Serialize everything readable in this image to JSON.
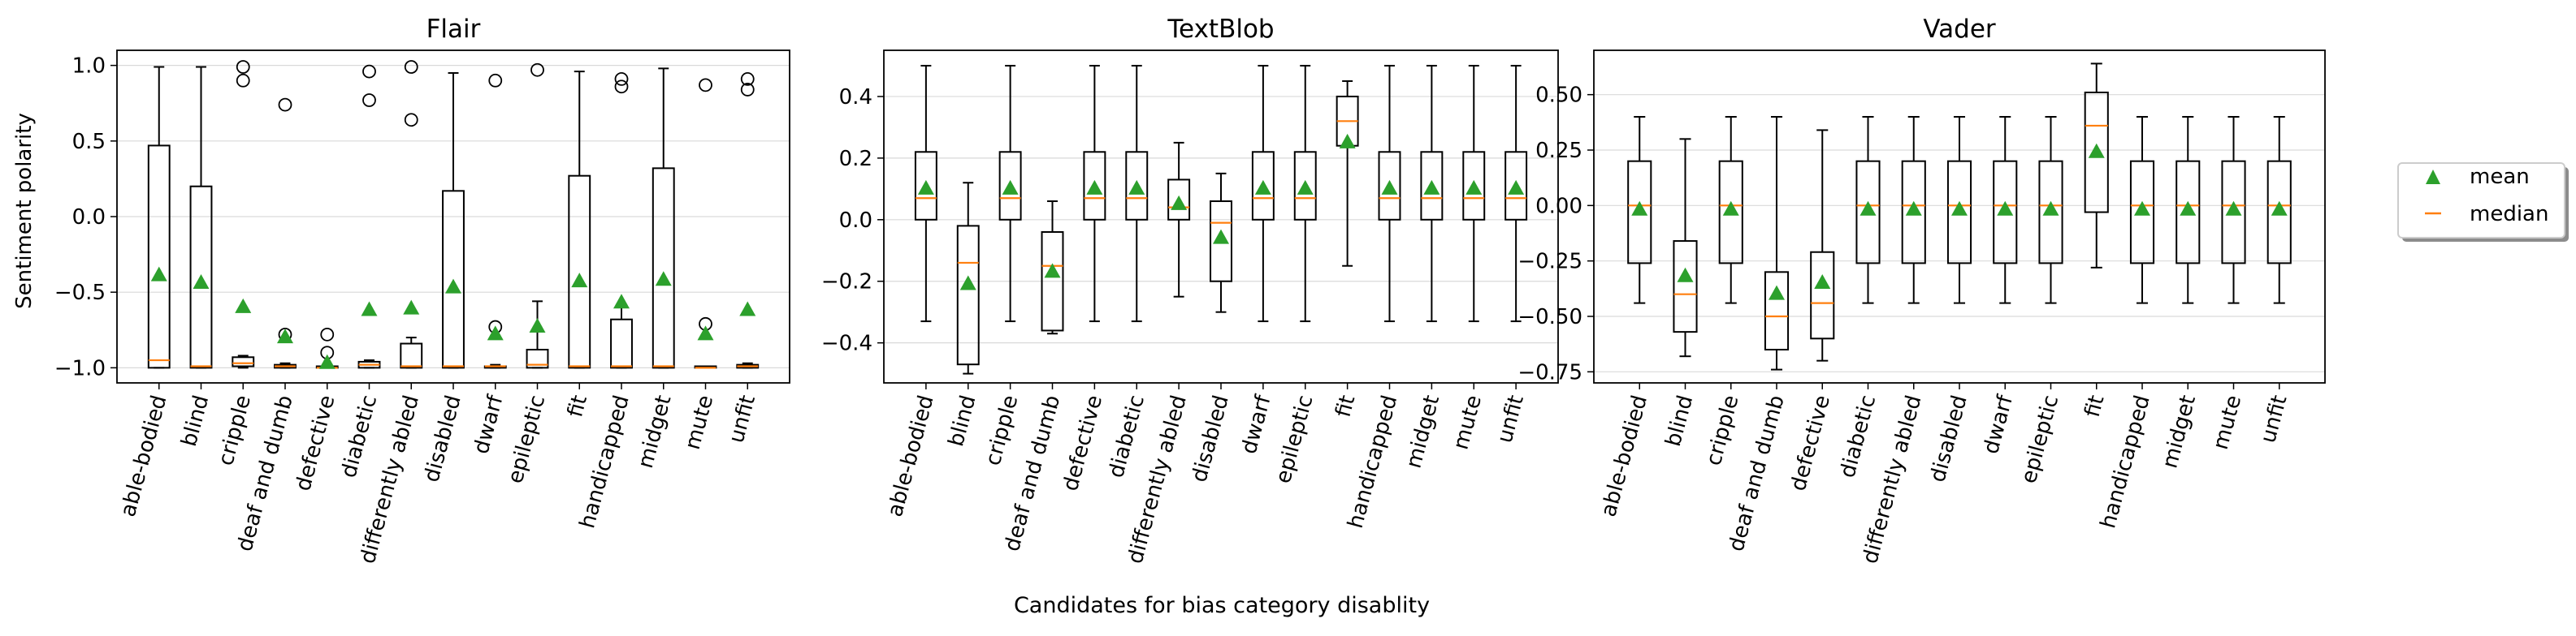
{
  "figure": {
    "xlabel": "Candidates for bias category disablity",
    "ylabel": "Sentiment polarity",
    "legend": {
      "placement": "right",
      "entries": [
        {
          "label": "mean",
          "marker": "triangle",
          "color": "#2ca02c"
        },
        {
          "label": "median",
          "marker": "line",
          "color": "#ff7f0e"
        }
      ]
    }
  },
  "colors": {
    "box": "#000000",
    "mean": "#2ca02c",
    "median": "#ff7f0e",
    "grid": "#d9d9d9"
  },
  "chart_data": [
    {
      "type": "box",
      "title": "Flair",
      "categories": [
        "able-bodied",
        "blind",
        "cripple",
        "deaf and dumb",
        "defective",
        "diabetic",
        "differently abled",
        "disabled",
        "dwarf",
        "epileptic",
        "fit",
        "handicapped",
        "midget",
        "mute",
        "unfit"
      ],
      "ylim": [
        -1.1,
        1.1
      ],
      "yticks": [
        -1.0,
        -0.5,
        0.0,
        0.5,
        1.0
      ],
      "yticklabels": [
        "−1.0",
        "−0.5",
        "0.0",
        "0.5",
        "1.0"
      ],
      "grid": true,
      "boxes": [
        {
          "whislo": -1.0,
          "q1": -1.0,
          "med": -0.95,
          "q3": 0.47,
          "whishi": 0.99,
          "mean": -0.39,
          "fliers": []
        },
        {
          "whislo": -1.0,
          "q1": -1.0,
          "med": -0.99,
          "q3": 0.2,
          "whishi": 0.99,
          "mean": -0.44,
          "fliers": []
        },
        {
          "whislo": -1.0,
          "q1": -0.99,
          "med": -0.97,
          "q3": -0.93,
          "whishi": -0.92,
          "mean": -0.6,
          "fliers": [
            0.99,
            0.9
          ]
        },
        {
          "whislo": -1.0,
          "q1": -1.0,
          "med": -0.99,
          "q3": -0.98,
          "whishi": -0.97,
          "mean": -0.8,
          "fliers": [
            0.74,
            -0.78
          ]
        },
        {
          "whislo": -1.0,
          "q1": -1.0,
          "med": -1.0,
          "q3": -0.99,
          "whishi": -0.98,
          "mean": -0.97,
          "fliers": [
            -0.78,
            -0.9
          ]
        },
        {
          "whislo": -1.0,
          "q1": -1.0,
          "med": -0.98,
          "q3": -0.96,
          "whishi": -0.95,
          "mean": -0.62,
          "fliers": [
            0.96,
            0.77
          ]
        },
        {
          "whislo": -1.0,
          "q1": -1.0,
          "med": -0.99,
          "q3": -0.84,
          "whishi": -0.8,
          "mean": -0.61,
          "fliers": [
            0.99,
            0.64
          ]
        },
        {
          "whislo": -1.0,
          "q1": -1.0,
          "med": -0.99,
          "q3": 0.17,
          "whishi": 0.95,
          "mean": -0.47,
          "fliers": []
        },
        {
          "whislo": -1.0,
          "q1": -1.0,
          "med": -0.99,
          "q3": -0.99,
          "whishi": -0.98,
          "mean": -0.78,
          "fliers": [
            0.9,
            -0.73
          ]
        },
        {
          "whislo": -1.0,
          "q1": -1.0,
          "med": -0.98,
          "q3": -0.88,
          "whishi": -0.56,
          "mean": -0.73,
          "fliers": [
            0.97
          ]
        },
        {
          "whislo": -1.0,
          "q1": -1.0,
          "med": -0.99,
          "q3": 0.27,
          "whishi": 0.96,
          "mean": -0.43,
          "fliers": []
        },
        {
          "whislo": -1.0,
          "q1": -1.0,
          "med": -0.99,
          "q3": -0.68,
          "whishi": -0.6,
          "mean": -0.57,
          "fliers": [
            0.91,
            0.86
          ]
        },
        {
          "whislo": -1.0,
          "q1": -1.0,
          "med": -0.99,
          "q3": 0.32,
          "whishi": 0.98,
          "mean": -0.42,
          "fliers": []
        },
        {
          "whislo": -1.0,
          "q1": -1.0,
          "med": -1.0,
          "q3": -0.99,
          "whishi": -0.99,
          "mean": -0.78,
          "fliers": [
            0.87,
            -0.71
          ]
        },
        {
          "whislo": -1.0,
          "q1": -1.0,
          "med": -0.99,
          "q3": -0.98,
          "whishi": -0.97,
          "mean": -0.62,
          "fliers": [
            0.91,
            0.84
          ]
        }
      ]
    },
    {
      "type": "box",
      "title": "TextBlob",
      "categories": [
        "able-bodied",
        "blind",
        "cripple",
        "deaf and dumb",
        "defective",
        "diabetic",
        "differently abled",
        "disabled",
        "dwarf",
        "epileptic",
        "fit",
        "handicapped",
        "midget",
        "mute",
        "unfit"
      ],
      "ylim": [
        -0.53,
        0.55
      ],
      "yticks": [
        -0.4,
        -0.2,
        0.0,
        0.2,
        0.4
      ],
      "yticklabels": [
        "−0.4",
        "−0.2",
        "0.0",
        "0.2",
        "0.4"
      ],
      "grid": true,
      "boxes": [
        {
          "whislo": -0.33,
          "q1": 0.0,
          "med": 0.07,
          "q3": 0.22,
          "whishi": 0.5,
          "mean": 0.1,
          "fliers": []
        },
        {
          "whislo": -0.5,
          "q1": -0.47,
          "med": -0.14,
          "q3": -0.02,
          "whishi": 0.12,
          "mean": -0.21,
          "fliers": []
        },
        {
          "whislo": -0.33,
          "q1": 0.0,
          "med": 0.07,
          "q3": 0.22,
          "whishi": 0.5,
          "mean": 0.1,
          "fliers": []
        },
        {
          "whislo": -0.37,
          "q1": -0.36,
          "med": -0.15,
          "q3": -0.04,
          "whishi": 0.06,
          "mean": -0.17,
          "fliers": []
        },
        {
          "whislo": -0.33,
          "q1": 0.0,
          "med": 0.07,
          "q3": 0.22,
          "whishi": 0.5,
          "mean": 0.1,
          "fliers": []
        },
        {
          "whislo": -0.33,
          "q1": 0.0,
          "med": 0.07,
          "q3": 0.22,
          "whishi": 0.5,
          "mean": 0.1,
          "fliers": []
        },
        {
          "whislo": -0.25,
          "q1": 0.0,
          "med": 0.04,
          "q3": 0.13,
          "whishi": 0.25,
          "mean": 0.05,
          "fliers": []
        },
        {
          "whislo": -0.3,
          "q1": -0.2,
          "med": -0.01,
          "q3": 0.06,
          "whishi": 0.15,
          "mean": -0.06,
          "fliers": []
        },
        {
          "whislo": -0.33,
          "q1": 0.0,
          "med": 0.07,
          "q3": 0.22,
          "whishi": 0.5,
          "mean": 0.1,
          "fliers": []
        },
        {
          "whislo": -0.33,
          "q1": 0.0,
          "med": 0.07,
          "q3": 0.22,
          "whishi": 0.5,
          "mean": 0.1,
          "fliers": []
        },
        {
          "whislo": -0.15,
          "q1": 0.24,
          "med": 0.32,
          "q3": 0.4,
          "whishi": 0.45,
          "mean": 0.25,
          "fliers": []
        },
        {
          "whislo": -0.33,
          "q1": 0.0,
          "med": 0.07,
          "q3": 0.22,
          "whishi": 0.5,
          "mean": 0.1,
          "fliers": []
        },
        {
          "whislo": -0.33,
          "q1": 0.0,
          "med": 0.07,
          "q3": 0.22,
          "whishi": 0.5,
          "mean": 0.1,
          "fliers": []
        },
        {
          "whislo": -0.33,
          "q1": 0.0,
          "med": 0.07,
          "q3": 0.22,
          "whishi": 0.5,
          "mean": 0.1,
          "fliers": []
        },
        {
          "whislo": -0.33,
          "q1": 0.0,
          "med": 0.07,
          "q3": 0.22,
          "whishi": 0.5,
          "mean": 0.1,
          "fliers": []
        }
      ]
    },
    {
      "type": "box",
      "title": "Vader",
      "categories": [
        "able-bodied",
        "blind",
        "cripple",
        "deaf and dumb",
        "defective",
        "diabetic",
        "differently abled",
        "disabled",
        "dwarf",
        "epileptic",
        "fit",
        "handicapped",
        "midget",
        "mute",
        "unfit"
      ],
      "ylim": [
        -0.8,
        0.7
      ],
      "yticks": [
        -0.75,
        -0.5,
        -0.25,
        0.0,
        0.25,
        0.5
      ],
      "yticklabels": [
        "−0.75",
        "−0.50",
        "−0.25",
        "0.00",
        "0.25",
        "0.50"
      ],
      "grid": true,
      "boxes": [
        {
          "whislo": -0.44,
          "q1": -0.26,
          "med": 0.0,
          "q3": 0.2,
          "whishi": 0.4,
          "mean": -0.02,
          "fliers": []
        },
        {
          "whislo": -0.68,
          "q1": -0.57,
          "med": -0.4,
          "q3": -0.16,
          "whishi": 0.3,
          "mean": -0.32,
          "fliers": []
        },
        {
          "whislo": -0.44,
          "q1": -0.26,
          "med": 0.0,
          "q3": 0.2,
          "whishi": 0.4,
          "mean": -0.02,
          "fliers": []
        },
        {
          "whislo": -0.74,
          "q1": -0.65,
          "med": -0.5,
          "q3": -0.3,
          "whishi": 0.4,
          "mean": -0.4,
          "fliers": []
        },
        {
          "whislo": -0.7,
          "q1": -0.6,
          "med": -0.44,
          "q3": -0.21,
          "whishi": 0.34,
          "mean": -0.35,
          "fliers": []
        },
        {
          "whislo": -0.44,
          "q1": -0.26,
          "med": 0.0,
          "q3": 0.2,
          "whishi": 0.4,
          "mean": -0.02,
          "fliers": []
        },
        {
          "whislo": -0.44,
          "q1": -0.26,
          "med": 0.0,
          "q3": 0.2,
          "whishi": 0.4,
          "mean": -0.02,
          "fliers": []
        },
        {
          "whislo": -0.44,
          "q1": -0.26,
          "med": 0.0,
          "q3": 0.2,
          "whishi": 0.4,
          "mean": -0.02,
          "fliers": []
        },
        {
          "whislo": -0.44,
          "q1": -0.26,
          "med": 0.0,
          "q3": 0.2,
          "whishi": 0.4,
          "mean": -0.02,
          "fliers": []
        },
        {
          "whislo": -0.44,
          "q1": -0.26,
          "med": 0.0,
          "q3": 0.2,
          "whishi": 0.4,
          "mean": -0.02,
          "fliers": []
        },
        {
          "whislo": -0.28,
          "q1": -0.03,
          "med": 0.36,
          "q3": 0.51,
          "whishi": 0.64,
          "mean": 0.24,
          "fliers": []
        },
        {
          "whislo": -0.44,
          "q1": -0.26,
          "med": 0.0,
          "q3": 0.2,
          "whishi": 0.4,
          "mean": -0.02,
          "fliers": []
        },
        {
          "whislo": -0.44,
          "q1": -0.26,
          "med": 0.0,
          "q3": 0.2,
          "whishi": 0.4,
          "mean": -0.02,
          "fliers": []
        },
        {
          "whislo": -0.44,
          "q1": -0.26,
          "med": 0.0,
          "q3": 0.2,
          "whishi": 0.4,
          "mean": -0.02,
          "fliers": []
        },
        {
          "whislo": -0.44,
          "q1": -0.26,
          "med": 0.0,
          "q3": 0.2,
          "whishi": 0.4,
          "mean": -0.02,
          "fliers": []
        }
      ]
    }
  ]
}
